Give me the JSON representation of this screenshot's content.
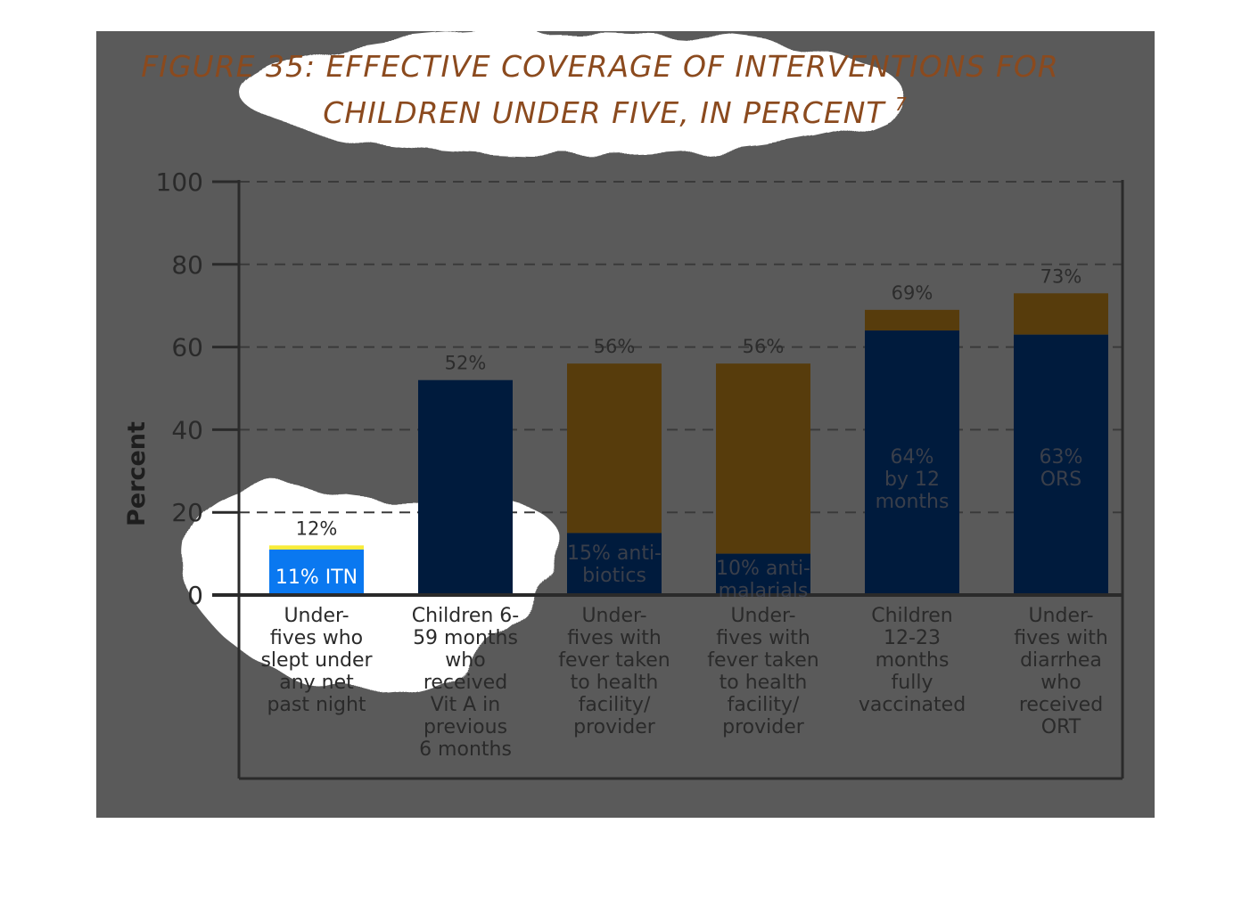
{
  "chart_data": {
    "type": "bar",
    "stacked": true,
    "title_line1": "FIGURE 35: EFFECTIVE COVERAGE OF INTERVENTIONS FOR",
    "title_line2": "CHILDREN UNDER FIVE, IN PERCENT",
    "title_superscript": "7",
    "ylabel": "Percent",
    "ylim": [
      0,
      100
    ],
    "yticks": [
      "0",
      "20",
      "40",
      "60",
      "80",
      "100"
    ],
    "grid": true,
    "categories": [
      [
        "Under-",
        "fives who",
        "slept under",
        "any net",
        "past night"
      ],
      [
        "Children 6-",
        "59 months",
        "who",
        "received",
        "Vit A in",
        "previous",
        "6 months"
      ],
      [
        "Under-",
        "fives with",
        "fever taken",
        "to health",
        "facility/",
        "provider"
      ],
      [
        "Under-",
        "fives with",
        "fever taken",
        "to health",
        "facility/",
        "provider"
      ],
      [
        "Children",
        "12-23",
        "months",
        "fully",
        "vaccinated"
      ],
      [
        "Under-",
        "fives with",
        "diarrhea",
        "who",
        "received",
        "ORT"
      ]
    ],
    "totals": [
      12,
      52,
      56,
      56,
      69,
      73
    ],
    "total_labels": [
      "12%",
      "52%",
      "56%",
      "56%",
      "69%",
      "73%"
    ],
    "effective": [
      11,
      52,
      15,
      10,
      64,
      63
    ],
    "effective_labels": [
      [
        "11% ITN"
      ],
      [],
      [
        "15% anti-",
        "biotics"
      ],
      [
        "10% anti-",
        "malarials"
      ],
      [
        "64%",
        "by 12",
        "months"
      ],
      [
        "63%",
        "ORS"
      ]
    ],
    "colors": {
      "overlay": "#5a5a5a",
      "dark_blue": "#001b3d",
      "bright_blue": "#0a78f0",
      "brown": "#573c0c",
      "bright_orange": "#e8890c",
      "bright_yellow": "#f8ec3a",
      "title": "#8b4a1e",
      "axis": "#2a2a2a"
    }
  }
}
